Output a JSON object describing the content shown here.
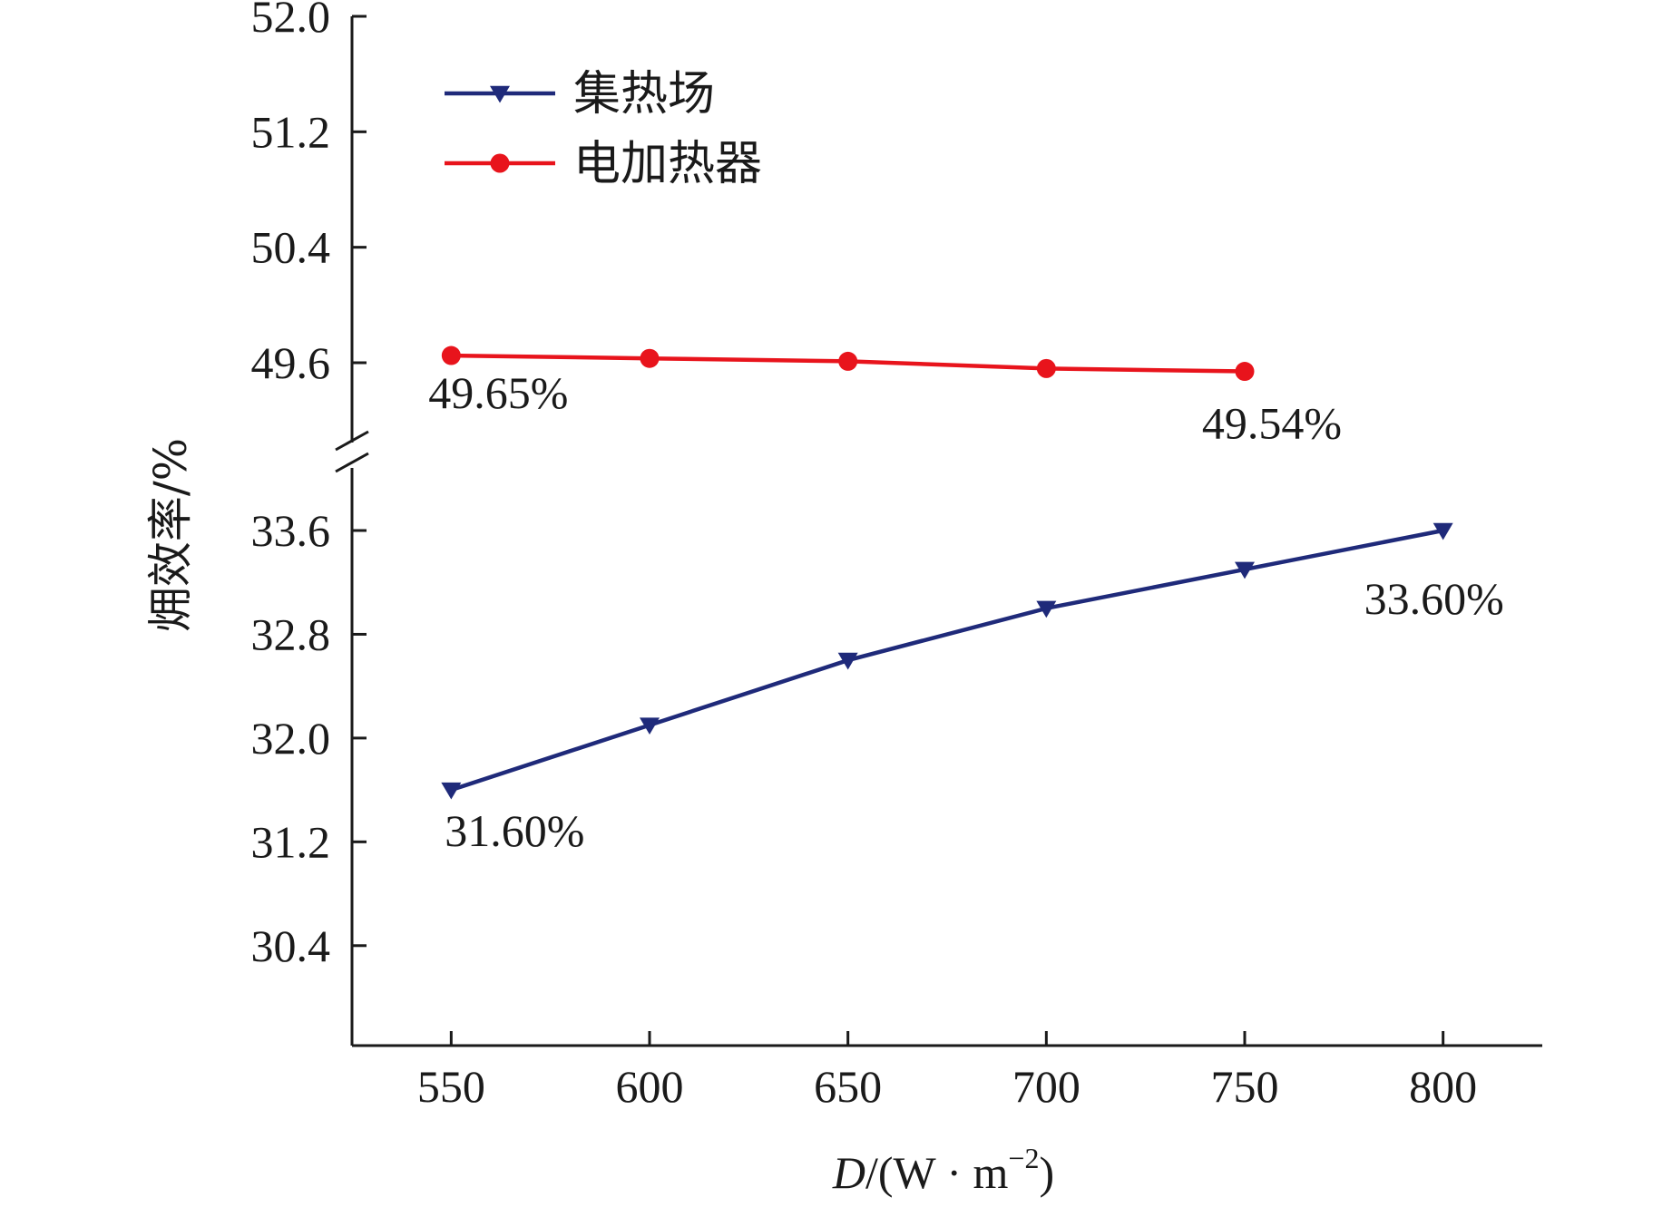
{
  "chart_data": {
    "type": "line",
    "x": [
      550,
      600,
      650,
      700,
      750,
      800
    ],
    "xticks": [
      "550",
      "600",
      "650",
      "700",
      "750",
      "800"
    ],
    "xlim": [
      525,
      825
    ],
    "xlabel": {
      "italic": "D",
      "rest": "/(W · m",
      "sup": "−2",
      "close": ")"
    },
    "ylabel": "㶲效率/%",
    "broken_y_axis": true,
    "upper_yticks": [
      "49.6",
      "50.4",
      "51.2",
      "52.0"
    ],
    "upper_ylim": [
      49.6,
      52.0
    ],
    "lower_yticks": [
      "30.4",
      "31.2",
      "32.0",
      "32.8",
      "33.6"
    ],
    "lower_ylim": [
      30.0,
      33.6
    ],
    "series": [
      {
        "name": "集热场",
        "color": "#1f2a7a",
        "marker": "triangle-down",
        "x": [
          550,
          600,
          650,
          700,
          750,
          800
        ],
        "values": [
          31.6,
          32.1,
          32.6,
          33.0,
          33.3,
          33.6
        ],
        "annotations": [
          {
            "x": 550,
            "text": "31.60%"
          },
          {
            "x": 800,
            "text": "33.60%"
          }
        ]
      },
      {
        "name": "电加热器",
        "color": "#e8141c",
        "marker": "circle",
        "x": [
          550,
          600,
          650,
          700,
          750
        ],
        "values": [
          49.65,
          49.63,
          49.61,
          49.56,
          49.54
        ],
        "annotations": [
          {
            "x": 550,
            "text": "49.65%"
          },
          {
            "x": 750,
            "text": "49.54%"
          }
        ]
      }
    ],
    "legend": "top-left",
    "grid": false
  }
}
